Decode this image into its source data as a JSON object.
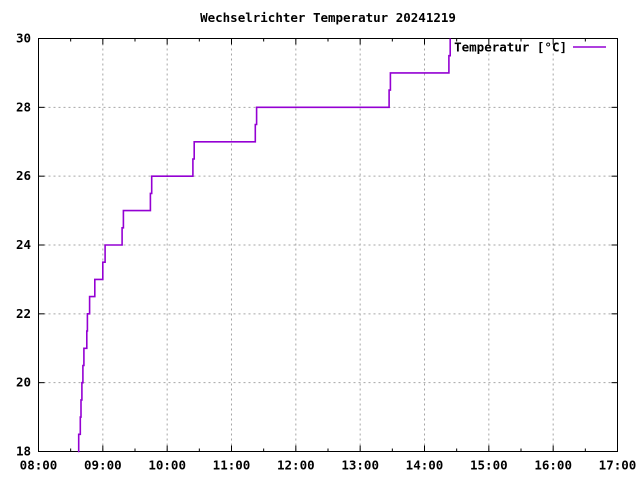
{
  "chart_data": {
    "type": "line",
    "line_style": "steps-post",
    "title": "Wechselrichter Temperatur 20241219",
    "xlabel": "",
    "ylabel": "",
    "grid": true,
    "legend_position": "top-right-inside",
    "x_axis": {
      "range_hours": [
        8,
        17
      ],
      "tick_hours": [
        8,
        9,
        10,
        11,
        12,
        13,
        14,
        15,
        16,
        17
      ],
      "tick_labels": [
        "08:00",
        "09:00",
        "10:00",
        "11:00",
        "12:00",
        "13:00",
        "14:00",
        "15:00",
        "16:00",
        "17:00"
      ],
      "minor_tick_interval_hours": 0.5
    },
    "y_axis": {
      "range": [
        18,
        30
      ],
      "ticks": [
        18,
        20,
        22,
        24,
        26,
        28,
        30
      ],
      "tick_labels": [
        "18",
        "20",
        "22",
        "24",
        "26",
        "28",
        "30"
      ]
    },
    "series": [
      {
        "name": "Temperatur [°C]",
        "color": "#9400d3",
        "points_time_hours_temp_c": [
          [
            8.613,
            18
          ],
          [
            8.625,
            18.5
          ],
          [
            8.65,
            19
          ],
          [
            8.66,
            19.5
          ],
          [
            8.675,
            20
          ],
          [
            8.69,
            20.5
          ],
          [
            8.705,
            21
          ],
          [
            8.75,
            21.5
          ],
          [
            8.76,
            22
          ],
          [
            8.795,
            22.5
          ],
          [
            8.875,
            23
          ],
          [
            9.0,
            23.5
          ],
          [
            9.035,
            24
          ],
          [
            9.3,
            24.5
          ],
          [
            9.32,
            25
          ],
          [
            9.74,
            25.5
          ],
          [
            9.76,
            26
          ],
          [
            10.4,
            26.5
          ],
          [
            10.42,
            27
          ],
          [
            11.37,
            27.5
          ],
          [
            11.39,
            28
          ],
          [
            13.45,
            28.5
          ],
          [
            13.47,
            29
          ],
          [
            14.38,
            29.5
          ],
          [
            14.4,
            30
          ]
        ]
      }
    ]
  },
  "colors": {
    "background": "#ffffff",
    "axis": "#000000",
    "grid": "#a6a6a6",
    "text": "#000000",
    "line": "#9400d3"
  }
}
